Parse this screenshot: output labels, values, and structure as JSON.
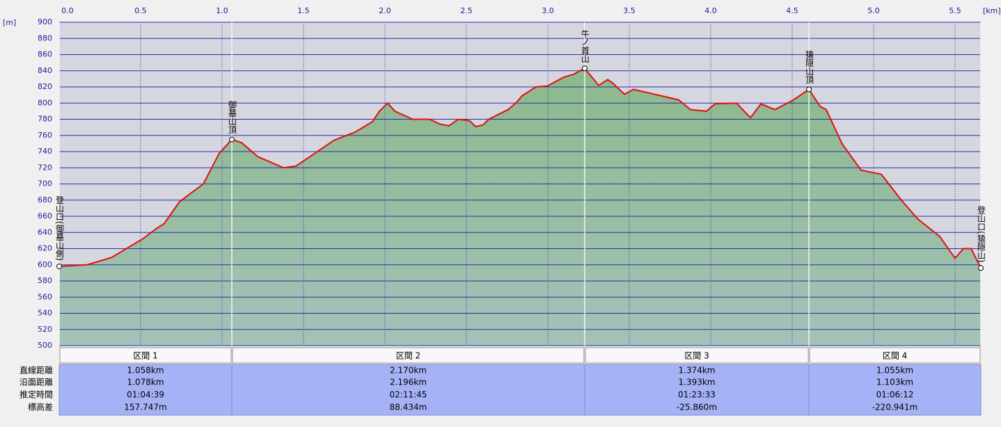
{
  "chart_data": {
    "type": "area",
    "x_unit": "[km]",
    "y_unit": "[m]",
    "xlim": [
      0,
      5.658
    ],
    "ylim": [
      500,
      900
    ],
    "xticks": [
      {
        "value": 0,
        "label": "0.0"
      },
      0.5,
      {
        "value": 1,
        "label": "1.0"
      },
      1.5,
      {
        "value": 2,
        "label": "2.0"
      },
      2.5,
      {
        "value": 3,
        "label": "3.0"
      },
      3.5,
      {
        "value": 4,
        "label": "4.0"
      },
      4.5,
      {
        "value": 5,
        "label": "5.0"
      },
      5.5
    ],
    "yticks": [
      500,
      520,
      540,
      560,
      580,
      600,
      620,
      640,
      660,
      680,
      700,
      720,
      740,
      760,
      780,
      800,
      820,
      840,
      860,
      880,
      900
    ],
    "grid": true,
    "x": [
      0,
      0.171,
      0.321,
      0.513,
      0.598,
      0.645,
      0.739,
      0.885,
      0.983,
      1.06,
      1.12,
      1.218,
      1.376,
      1.453,
      1.688,
      1.816,
      1.923,
      1.966,
      2.017,
      2.06,
      2.171,
      2.274,
      2.338,
      2.393,
      2.449,
      2.521,
      2.556,
      2.603,
      2.637,
      2.756,
      2.808,
      2.842,
      2.927,
      2.996,
      3.098,
      3.162,
      3.226,
      3.312,
      3.368,
      3.397,
      3.47,
      3.526,
      3.803,
      3.876,
      3.974,
      4.026,
      4.158,
      4.244,
      4.308,
      4.393,
      4.5,
      4.603,
      4.671,
      4.709,
      4.808,
      4.923,
      5.047,
      5.162,
      5.269,
      5.406,
      5.5,
      5.551,
      5.598,
      5.658
    ],
    "series": [
      {
        "color": "#e01010",
        "fill": "#8fba8f",
        "values": [
          598,
          600,
          609,
          632,
          645,
          651,
          678,
          700,
          738,
          755,
          751,
          734,
          720,
          722,
          754,
          764,
          777,
          790,
          800,
          790,
          780,
          780,
          774,
          772,
          780,
          778,
          771,
          773,
          780,
          792,
          801,
          809,
          820,
          821,
          832,
          836,
          843,
          822,
          829,
          825,
          811,
          817,
          804,
          792,
          790,
          799,
          800,
          782,
          799,
          792,
          803,
          817,
          796,
          792,
          749,
          717,
          712,
          682,
          657,
          635,
          608,
          620,
          620,
          596
        ]
      }
    ],
    "waypoints": [
      {
        "label": "登山口(御墓山側)",
        "x": 0,
        "y": 598
      },
      {
        "label": "御墓山頂",
        "x": 1.06,
        "y": 755
      },
      {
        "label": "牛ノ首山",
        "x": 3.226,
        "y": 843
      },
      {
        "label": "猿隠山頂",
        "x": 4.603,
        "y": 817
      },
      {
        "label": "登山口(猿隠山)",
        "x": 5.658,
        "y": 596
      }
    ]
  },
  "table": {
    "row_labels": [
      "直線距離",
      "沿面距離",
      "推定時間",
      "標高差"
    ],
    "columns": [
      {
        "header": "区間 1",
        "cells": [
          "1.058km",
          "1.078km",
          "01:04:39",
          "157.747m"
        ]
      },
      {
        "header": "区間 2",
        "cells": [
          "2.170km",
          "2.196km",
          "02:11:45",
          "88.434m"
        ]
      },
      {
        "header": "区間 3",
        "cells": [
          "1.374km",
          "1.393km",
          "01:23:33",
          "-25.860m"
        ]
      },
      {
        "header": "区間 4",
        "cells": [
          "1.055km",
          "1.103km",
          "01:06:12",
          "-220.941m"
        ]
      }
    ]
  }
}
